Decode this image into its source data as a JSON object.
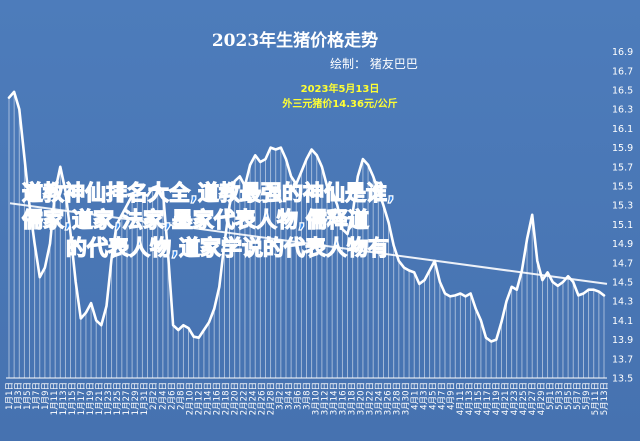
{
  "header": {
    "title": "2023年生猪价格走势",
    "author": "绘制：  猪友巴巴"
  },
  "annotation": {
    "date": "2023年5月13日",
    "price": "外三元猪价14.36元/公斤"
  },
  "watermark": {
    "line1": "道教神仙排名大全,道教最强的神仙是谁,",
    "line2": "儒家,道家,法家,墨家代表人物,儒释道",
    "line3": "的代表人物,道家学说的代表人物有"
  },
  "chart_data": {
    "type": "line",
    "title": "2023年生猪价格走势",
    "xlabel": "",
    "ylabel": "",
    "ylim": [
      13.5,
      17.0
    ],
    "yticks": [
      13.5,
      13.7,
      13.9,
      14.1,
      14.3,
      14.5,
      14.7,
      14.9,
      15.1,
      15.3,
      15.5,
      15.7,
      15.9,
      16.1,
      16.3,
      16.5,
      16.7,
      16.9
    ],
    "x_tick_labels": [
      "1月1日",
      "1月3日",
      "1月5日",
      "1月7日",
      "1月9日",
      "1月11日",
      "1月13日",
      "1月15日",
      "1月17日",
      "1月19日",
      "1月21日",
      "1月23日",
      "1月25日",
      "1月27日",
      "1月29日",
      "1月31日",
      "2月2日",
      "2月4日",
      "2月6日",
      "2月8日",
      "2月10日",
      "2月12日",
      "2月14日",
      "2月16日",
      "2月18日",
      "2月20日",
      "2月22日",
      "2月24日",
      "2月26日",
      "2月28日",
      "3月2日",
      "3月4日",
      "3月6日",
      "3月8日",
      "3月10日",
      "3月12日",
      "3月14日",
      "3月16日",
      "3月18日",
      "3月20日",
      "3月22日",
      "3月24日",
      "3月26日",
      "3月28日",
      "3月30日",
      "4月1日",
      "4月3日",
      "4月5日",
      "4月7日",
      "4月9日",
      "4月11日",
      "4月13日",
      "4月15日",
      "4月17日",
      "4月19日",
      "4月21日",
      "4月23日",
      "4月25日",
      "4月27日",
      "4月29日",
      "5月1日",
      "5月3日",
      "5月5日",
      "5月7日",
      "5月9日",
      "5月11日",
      "5月13日"
    ],
    "grid": false,
    "series": [
      {
        "values": [
          16.42,
          16.48,
          16.3,
          15.8,
          15.3,
          14.9,
          14.55,
          14.65,
          14.9,
          15.45,
          15.7,
          15.45,
          15.0,
          14.5,
          14.12,
          14.18,
          14.28,
          14.1,
          14.05,
          14.25,
          14.75,
          15.1,
          15.2,
          15.3,
          15.4,
          15.4,
          15.42,
          15.4,
          15.48,
          15.5,
          15.45,
          14.8,
          14.05,
          14.0,
          14.05,
          14.02,
          13.93,
          13.92,
          14.0,
          14.08,
          14.22,
          14.45,
          14.9,
          15.3,
          15.55,
          15.6,
          15.5,
          15.72,
          15.82,
          15.75,
          15.78,
          15.9,
          15.88,
          15.9,
          15.78,
          15.6,
          15.52,
          15.65,
          15.78,
          15.88,
          15.82,
          15.7,
          15.5,
          15.45,
          15.3,
          15.05,
          15.0,
          15.22,
          15.6,
          15.78,
          15.72,
          15.6,
          15.45,
          15.3,
          15.12,
          14.88,
          14.72,
          14.65,
          14.62,
          14.6,
          14.48,
          14.52,
          14.62,
          14.72,
          14.5,
          14.38,
          14.35,
          14.36,
          14.38,
          14.35,
          14.38,
          14.22,
          14.1,
          13.92,
          13.88,
          13.9,
          14.08,
          14.3,
          14.45,
          14.42,
          14.62,
          14.95,
          15.2,
          14.72,
          14.52,
          14.6,
          14.5,
          14.46,
          14.5,
          14.56,
          14.5,
          14.36,
          14.38,
          14.42,
          14.42,
          14.4,
          14.36
        ]
      },
      {
        "values": [
          15.32,
          14.48
        ]
      }
    ]
  }
}
